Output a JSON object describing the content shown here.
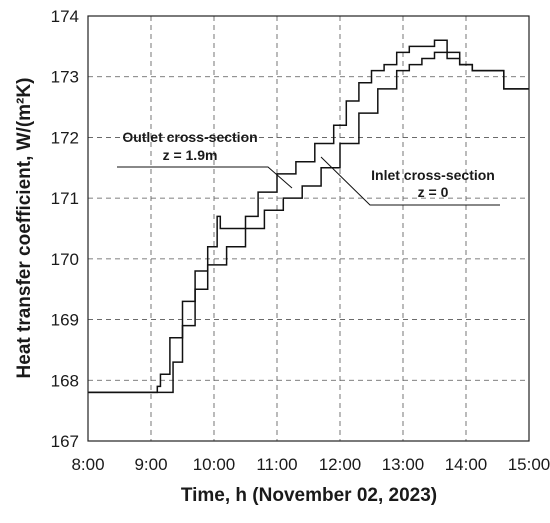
{
  "chart_data": {
    "type": "line",
    "xlabel": "Time, h (November 02, 2023)",
    "ylabel": "Heat transfer coefficient, W/(m²K)",
    "xlim": [
      8,
      15
    ],
    "ylim": [
      167,
      174
    ],
    "x_ticks": [
      8,
      9,
      10,
      11,
      12,
      13,
      14,
      15
    ],
    "x_tick_labels": [
      "8:00",
      "9:00",
      "10:00",
      "11:00",
      "12:00",
      "13:00",
      "14:00",
      "15:00"
    ],
    "y_ticks": [
      167,
      168,
      169,
      170,
      171,
      172,
      173,
      174
    ],
    "y_tick_labels": [
      "167",
      "168",
      "169",
      "170",
      "171",
      "172",
      "173",
      "174"
    ],
    "grid": true,
    "series": [
      {
        "name": "Outlet cross-section z = 1.9m",
        "x": [
          8.0,
          8.6,
          9.1,
          9.15,
          9.3,
          9.5,
          9.7,
          9.9,
          10.05,
          10.1,
          10.3,
          10.5,
          10.7,
          11.0,
          11.3,
          11.6,
          11.9,
          12.1,
          12.3,
          12.5,
          12.7,
          12.9,
          13.1,
          13.3,
          13.5,
          13.7,
          13.9,
          14.1,
          14.3,
          14.5,
          14.6,
          15.0
        ],
        "y": [
          167.8,
          167.8,
          167.9,
          168.1,
          168.7,
          169.3,
          169.8,
          170.2,
          170.7,
          170.5,
          170.5,
          170.7,
          171.1,
          171.4,
          171.6,
          171.9,
          172.2,
          172.6,
          172.9,
          173.1,
          173.2,
          173.4,
          173.5,
          173.5,
          173.6,
          173.4,
          173.2,
          173.1,
          173.1,
          173.1,
          172.8,
          172.8
        ]
      },
      {
        "name": "Inlet cross-section z = 0",
        "x": [
          8.0,
          8.9,
          9.2,
          9.35,
          9.5,
          9.7,
          9.9,
          10.2,
          10.5,
          10.8,
          11.1,
          11.4,
          11.7,
          12.0,
          12.3,
          12.6,
          12.9,
          13.1,
          13.3,
          13.5,
          13.7,
          13.9,
          14.1,
          14.3,
          14.5,
          14.6,
          15.0
        ],
        "y": [
          167.8,
          167.8,
          167.8,
          168.3,
          168.9,
          169.5,
          169.9,
          170.2,
          170.5,
          170.8,
          171.0,
          171.2,
          171.5,
          171.9,
          172.4,
          172.8,
          173.1,
          173.2,
          173.3,
          173.4,
          173.3,
          173.2,
          173.1,
          173.1,
          173.1,
          172.8,
          172.8
        ]
      }
    ]
  },
  "annotations": [
    {
      "line1": "Outlet cross-section",
      "line2": "z = 1.9m"
    },
    {
      "line1": "Inlet cross-section",
      "line2": "z = 0"
    }
  ]
}
